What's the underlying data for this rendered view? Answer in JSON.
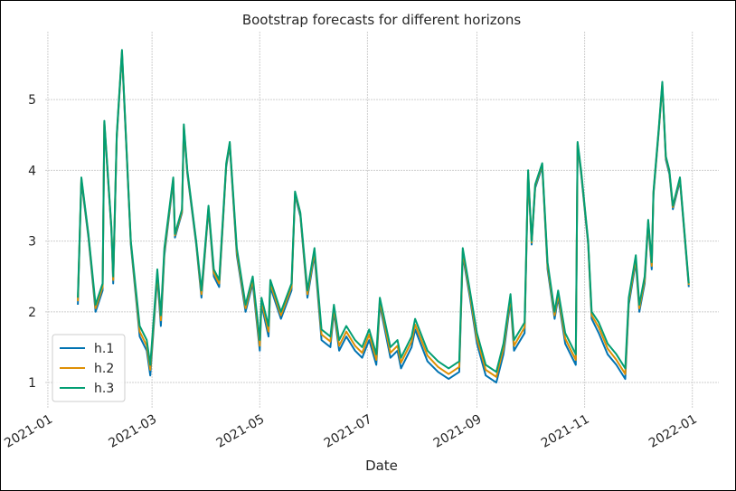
{
  "chart_data": {
    "type": "line",
    "title": "Bootstrap forecasts for different horizons",
    "xlabel": "Date",
    "xlim": [
      -1.5,
      380
    ],
    "ylim": [
      0.63,
      5.96
    ],
    "xticks": [
      {
        "value": 0,
        "label": "2021-01"
      },
      {
        "value": 59,
        "label": "2021-03"
      },
      {
        "value": 120,
        "label": "2021-05"
      },
      {
        "value": 181,
        "label": "2021-07"
      },
      {
        "value": 243,
        "label": "2021-09"
      },
      {
        "value": 304,
        "label": "2021-11"
      },
      {
        "value": 365,
        "label": "2022-01"
      }
    ],
    "yticks": [
      1,
      2,
      3,
      4,
      5
    ],
    "grid": true,
    "legend": "lower left",
    "x": [
      17,
      19,
      23,
      27,
      31,
      32,
      36,
      37,
      39,
      42,
      47,
      52,
      56,
      58,
      62,
      64,
      66,
      71,
      72,
      76,
      77,
      79,
      84,
      87,
      91,
      94,
      97,
      101,
      103,
      107,
      112,
      116,
      120,
      121,
      125,
      126,
      132,
      138,
      140,
      143,
      147,
      151,
      155,
      160,
      162,
      165,
      169,
      174,
      178,
      182,
      186,
      188,
      194,
      198,
      200,
      206,
      208,
      215,
      221,
      227,
      233,
      235,
      239,
      243,
      248,
      254,
      258,
      262,
      264,
      270,
      272,
      274,
      276,
      280,
      283,
      287,
      289,
      293,
      299,
      300,
      302,
      306,
      308,
      312,
      317,
      322,
      327,
      329,
      333,
      335,
      338,
      340,
      342,
      343,
      346,
      348,
      350,
      352,
      354,
      358,
      363
    ],
    "series": [
      {
        "name": "h.1",
        "color": "#0173b2",
        "values": [
          2.1,
          3.85,
          3.05,
          2.0,
          2.3,
          4.65,
          3.15,
          2.4,
          4.45,
          5.65,
          2.95,
          1.65,
          1.45,
          1.1,
          2.5,
          1.8,
          2.8,
          3.85,
          3.05,
          3.4,
          4.6,
          3.95,
          2.95,
          2.2,
          3.45,
          2.5,
          2.35,
          4.05,
          4.35,
          2.8,
          2.0,
          2.4,
          1.45,
          2.1,
          1.65,
          2.35,
          1.9,
          2.3,
          3.65,
          3.35,
          2.2,
          2.8,
          1.6,
          1.5,
          2.0,
          1.45,
          1.65,
          1.45,
          1.35,
          1.6,
          1.25,
          2.1,
          1.35,
          1.45,
          1.2,
          1.5,
          1.75,
          1.3,
          1.15,
          1.05,
          1.15,
          2.8,
          2.2,
          1.55,
          1.1,
          1.0,
          1.4,
          2.15,
          1.45,
          1.7,
          3.95,
          2.95,
          3.75,
          4.05,
          2.6,
          1.9,
          2.2,
          1.55,
          1.25,
          4.35,
          3.95,
          2.95,
          1.9,
          1.7,
          1.4,
          1.25,
          1.05,
          2.1,
          2.7,
          2.0,
          2.4,
          3.25,
          2.6,
          3.65,
          4.55,
          5.2,
          4.15,
          3.95,
          3.45,
          3.85,
          2.35
        ]
      },
      {
        "name": "h.2",
        "color": "#de8f05",
        "values": [
          2.15,
          3.88,
          3.08,
          2.05,
          2.35,
          4.68,
          3.18,
          2.45,
          4.48,
          5.68,
          2.98,
          1.72,
          1.52,
          1.18,
          2.55,
          1.88,
          2.85,
          3.88,
          3.08,
          3.42,
          4.62,
          3.98,
          2.98,
          2.25,
          3.48,
          2.55,
          2.4,
          4.08,
          4.38,
          2.85,
          2.05,
          2.45,
          1.52,
          2.15,
          1.72,
          2.4,
          1.95,
          2.35,
          3.68,
          3.38,
          2.25,
          2.85,
          1.68,
          1.58,
          2.05,
          1.52,
          1.72,
          1.52,
          1.42,
          1.68,
          1.32,
          2.15,
          1.42,
          1.52,
          1.28,
          1.58,
          1.82,
          1.38,
          1.22,
          1.12,
          1.22,
          2.85,
          2.25,
          1.62,
          1.18,
          1.08,
          1.48,
          2.2,
          1.52,
          1.78,
          3.98,
          2.98,
          3.78,
          4.08,
          2.65,
          1.95,
          2.25,
          1.62,
          1.32,
          4.38,
          3.98,
          2.98,
          1.95,
          1.78,
          1.48,
          1.32,
          1.12,
          2.15,
          2.75,
          2.05,
          2.45,
          3.28,
          2.65,
          3.68,
          4.58,
          5.22,
          4.18,
          3.98,
          3.48,
          3.88,
          2.38
        ]
      },
      {
        "name": "h.3",
        "color": "#029e73",
        "values": [
          2.2,
          3.9,
          3.1,
          2.1,
          2.4,
          4.7,
          3.2,
          2.5,
          4.5,
          5.7,
          3.0,
          1.8,
          1.6,
          1.25,
          2.6,
          1.95,
          2.9,
          3.9,
          3.1,
          3.45,
          4.65,
          4.0,
          3.0,
          2.3,
          3.5,
          2.6,
          2.45,
          4.1,
          4.4,
          2.9,
          2.1,
          2.5,
          1.6,
          2.2,
          1.8,
          2.45,
          2.0,
          2.4,
          3.7,
          3.4,
          2.3,
          2.9,
          1.75,
          1.65,
          2.1,
          1.6,
          1.8,
          1.6,
          1.5,
          1.75,
          1.4,
          2.2,
          1.5,
          1.6,
          1.35,
          1.65,
          1.9,
          1.45,
          1.3,
          1.2,
          1.3,
          2.9,
          2.3,
          1.7,
          1.25,
          1.15,
          1.55,
          2.25,
          1.6,
          1.85,
          4.0,
          3.0,
          3.8,
          4.1,
          2.7,
          2.0,
          2.3,
          1.7,
          1.4,
          4.4,
          4.0,
          3.0,
          2.0,
          1.85,
          1.55,
          1.4,
          1.2,
          2.2,
          2.8,
          2.1,
          2.5,
          3.3,
          2.7,
          3.7,
          4.6,
          5.25,
          4.2,
          4.0,
          3.5,
          3.9,
          2.4
        ]
      }
    ]
  }
}
